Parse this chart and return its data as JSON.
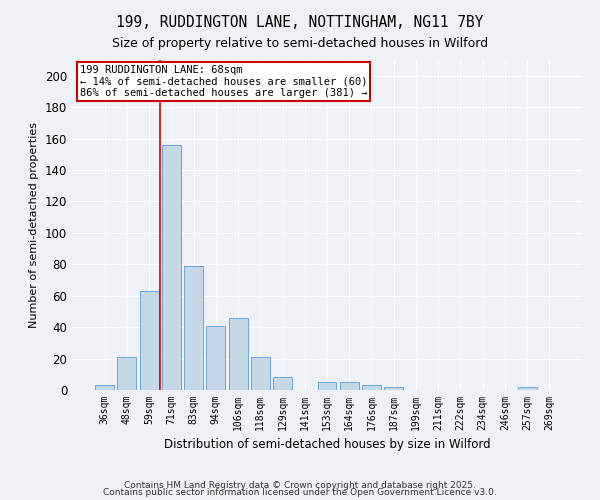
{
  "title1": "199, RUDDINGTON LANE, NOTTINGHAM, NG11 7BY",
  "title2": "Size of property relative to semi-detached houses in Wilford",
  "xlabel": "Distribution of semi-detached houses by size in Wilford",
  "ylabel": "Number of semi-detached properties",
  "categories": [
    "36sqm",
    "48sqm",
    "59sqm",
    "71sqm",
    "83sqm",
    "94sqm",
    "106sqm",
    "118sqm",
    "129sqm",
    "141sqm",
    "153sqm",
    "164sqm",
    "176sqm",
    "187sqm",
    "199sqm",
    "211sqm",
    "222sqm",
    "234sqm",
    "246sqm",
    "257sqm",
    "269sqm"
  ],
  "values": [
    3,
    21,
    63,
    156,
    79,
    41,
    46,
    21,
    8,
    0,
    5,
    5,
    3,
    2,
    0,
    0,
    0,
    0,
    0,
    2,
    0
  ],
  "bar_color": "#c5d8e8",
  "bar_edge_color": "#5b9bd5",
  "vline_color": "#cc0000",
  "vline_x": 2.5,
  "annotation_title": "199 RUDDINGTON LANE: 68sqm",
  "annotation_line1": "← 14% of semi-detached houses are smaller (60)",
  "annotation_line2": "86% of semi-detached houses are larger (381) →",
  "annotation_box_edgecolor": "#cc0000",
  "background_color": "#eef2f7",
  "grid_color": "#ffffff",
  "ylim": [
    0,
    210
  ],
  "yticks": [
    0,
    20,
    40,
    60,
    80,
    100,
    120,
    140,
    160,
    180,
    200
  ],
  "footer1": "Contains HM Land Registry data © Crown copyright and database right 2025.",
  "footer2": "Contains public sector information licensed under the Open Government Licence v3.0."
}
